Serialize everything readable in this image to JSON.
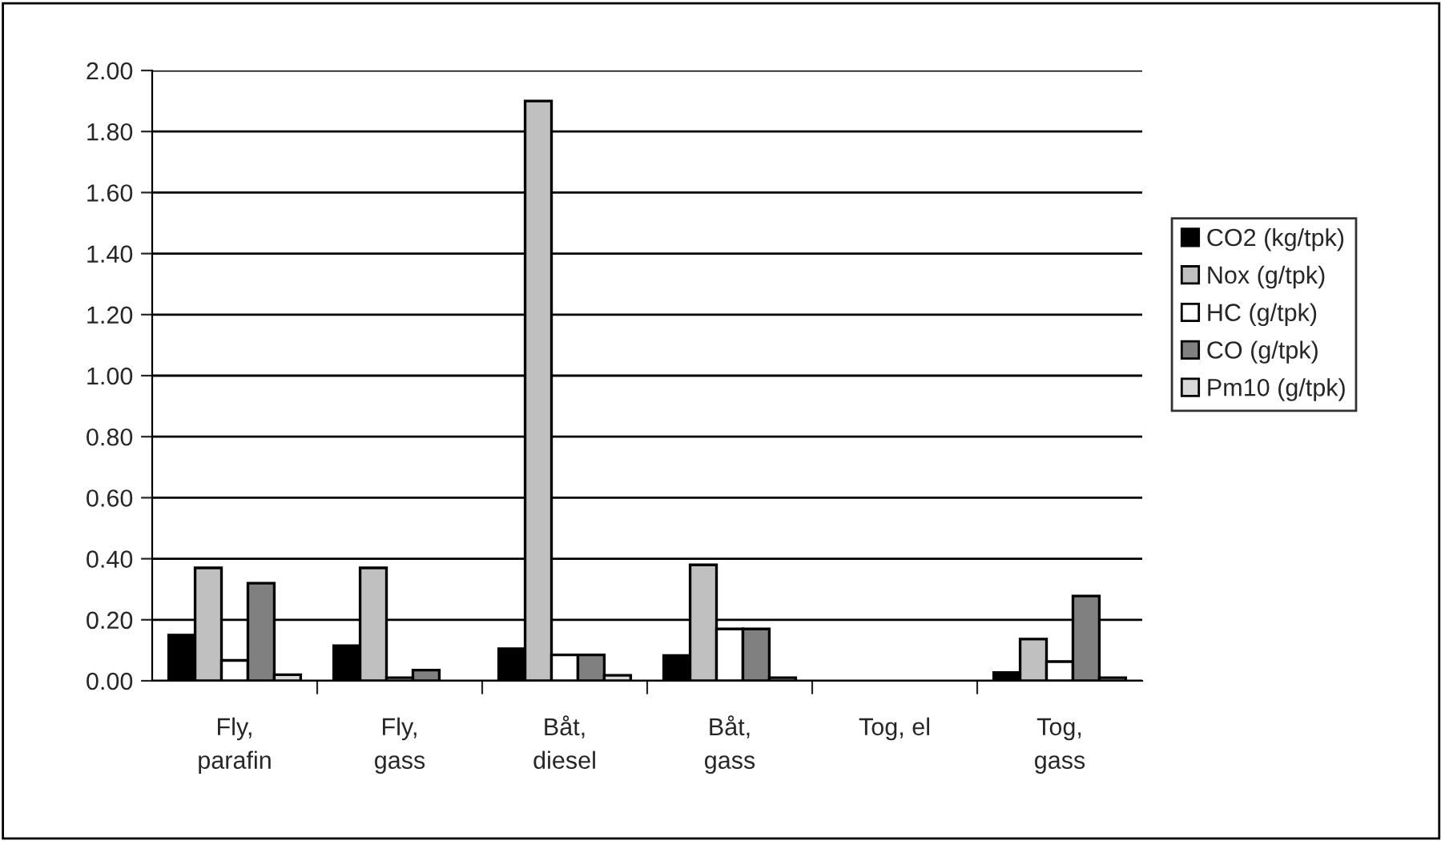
{
  "chart_data": {
    "type": "bar",
    "categories": [
      "Fly,\nparafin",
      "Fly,\ngass",
      "Båt,\ndiesel",
      "Båt,\ngass",
      "Tog, el",
      "Tog,\ngass"
    ],
    "series": [
      {
        "name": "CO2 (kg/tpk)",
        "color": "#000000",
        "values": [
          0.15,
          0.115,
          0.105,
          0.083,
          0,
          0.027
        ]
      },
      {
        "name": "Nox (g/tpk)",
        "color": "#c0c0c0",
        "values": [
          0.37,
          0.37,
          1.9,
          0.38,
          0,
          0.137
        ]
      },
      {
        "name": "HC (g/tpk)",
        "color": "#ffffff",
        "values": [
          0.067,
          0.01,
          0.085,
          0.17,
          0,
          0.063
        ]
      },
      {
        "name": "CO (g/tpk)",
        "color": "#808080",
        "values": [
          0.32,
          0.035,
          0.085,
          0.17,
          0,
          0.278
        ]
      },
      {
        "name": "Pm10 (g/tpk)",
        "color": "#d9d9d9",
        "values": [
          0.02,
          0,
          0.018,
          0.01,
          0,
          0.01
        ]
      }
    ],
    "ylim": [
      0,
      2
    ],
    "yticks": [
      {
        "value": 0,
        "label": "0.00"
      },
      {
        "value": 0.2,
        "label": "0.20"
      },
      {
        "value": 0.4,
        "label": "0.40"
      },
      {
        "value": 0.6,
        "label": "0.60"
      },
      {
        "value": 0.8,
        "label": "0.80"
      },
      {
        "value": 1.0,
        "label": "1.00"
      },
      {
        "value": 1.2,
        "label": "1.20"
      },
      {
        "value": 1.4,
        "label": "1.40"
      },
      {
        "value": 1.6,
        "label": "1.60"
      },
      {
        "value": 1.8,
        "label": "1.80"
      },
      {
        "value": 2.0,
        "label": "2.00"
      }
    ],
    "grid": "y",
    "legend": "right"
  }
}
